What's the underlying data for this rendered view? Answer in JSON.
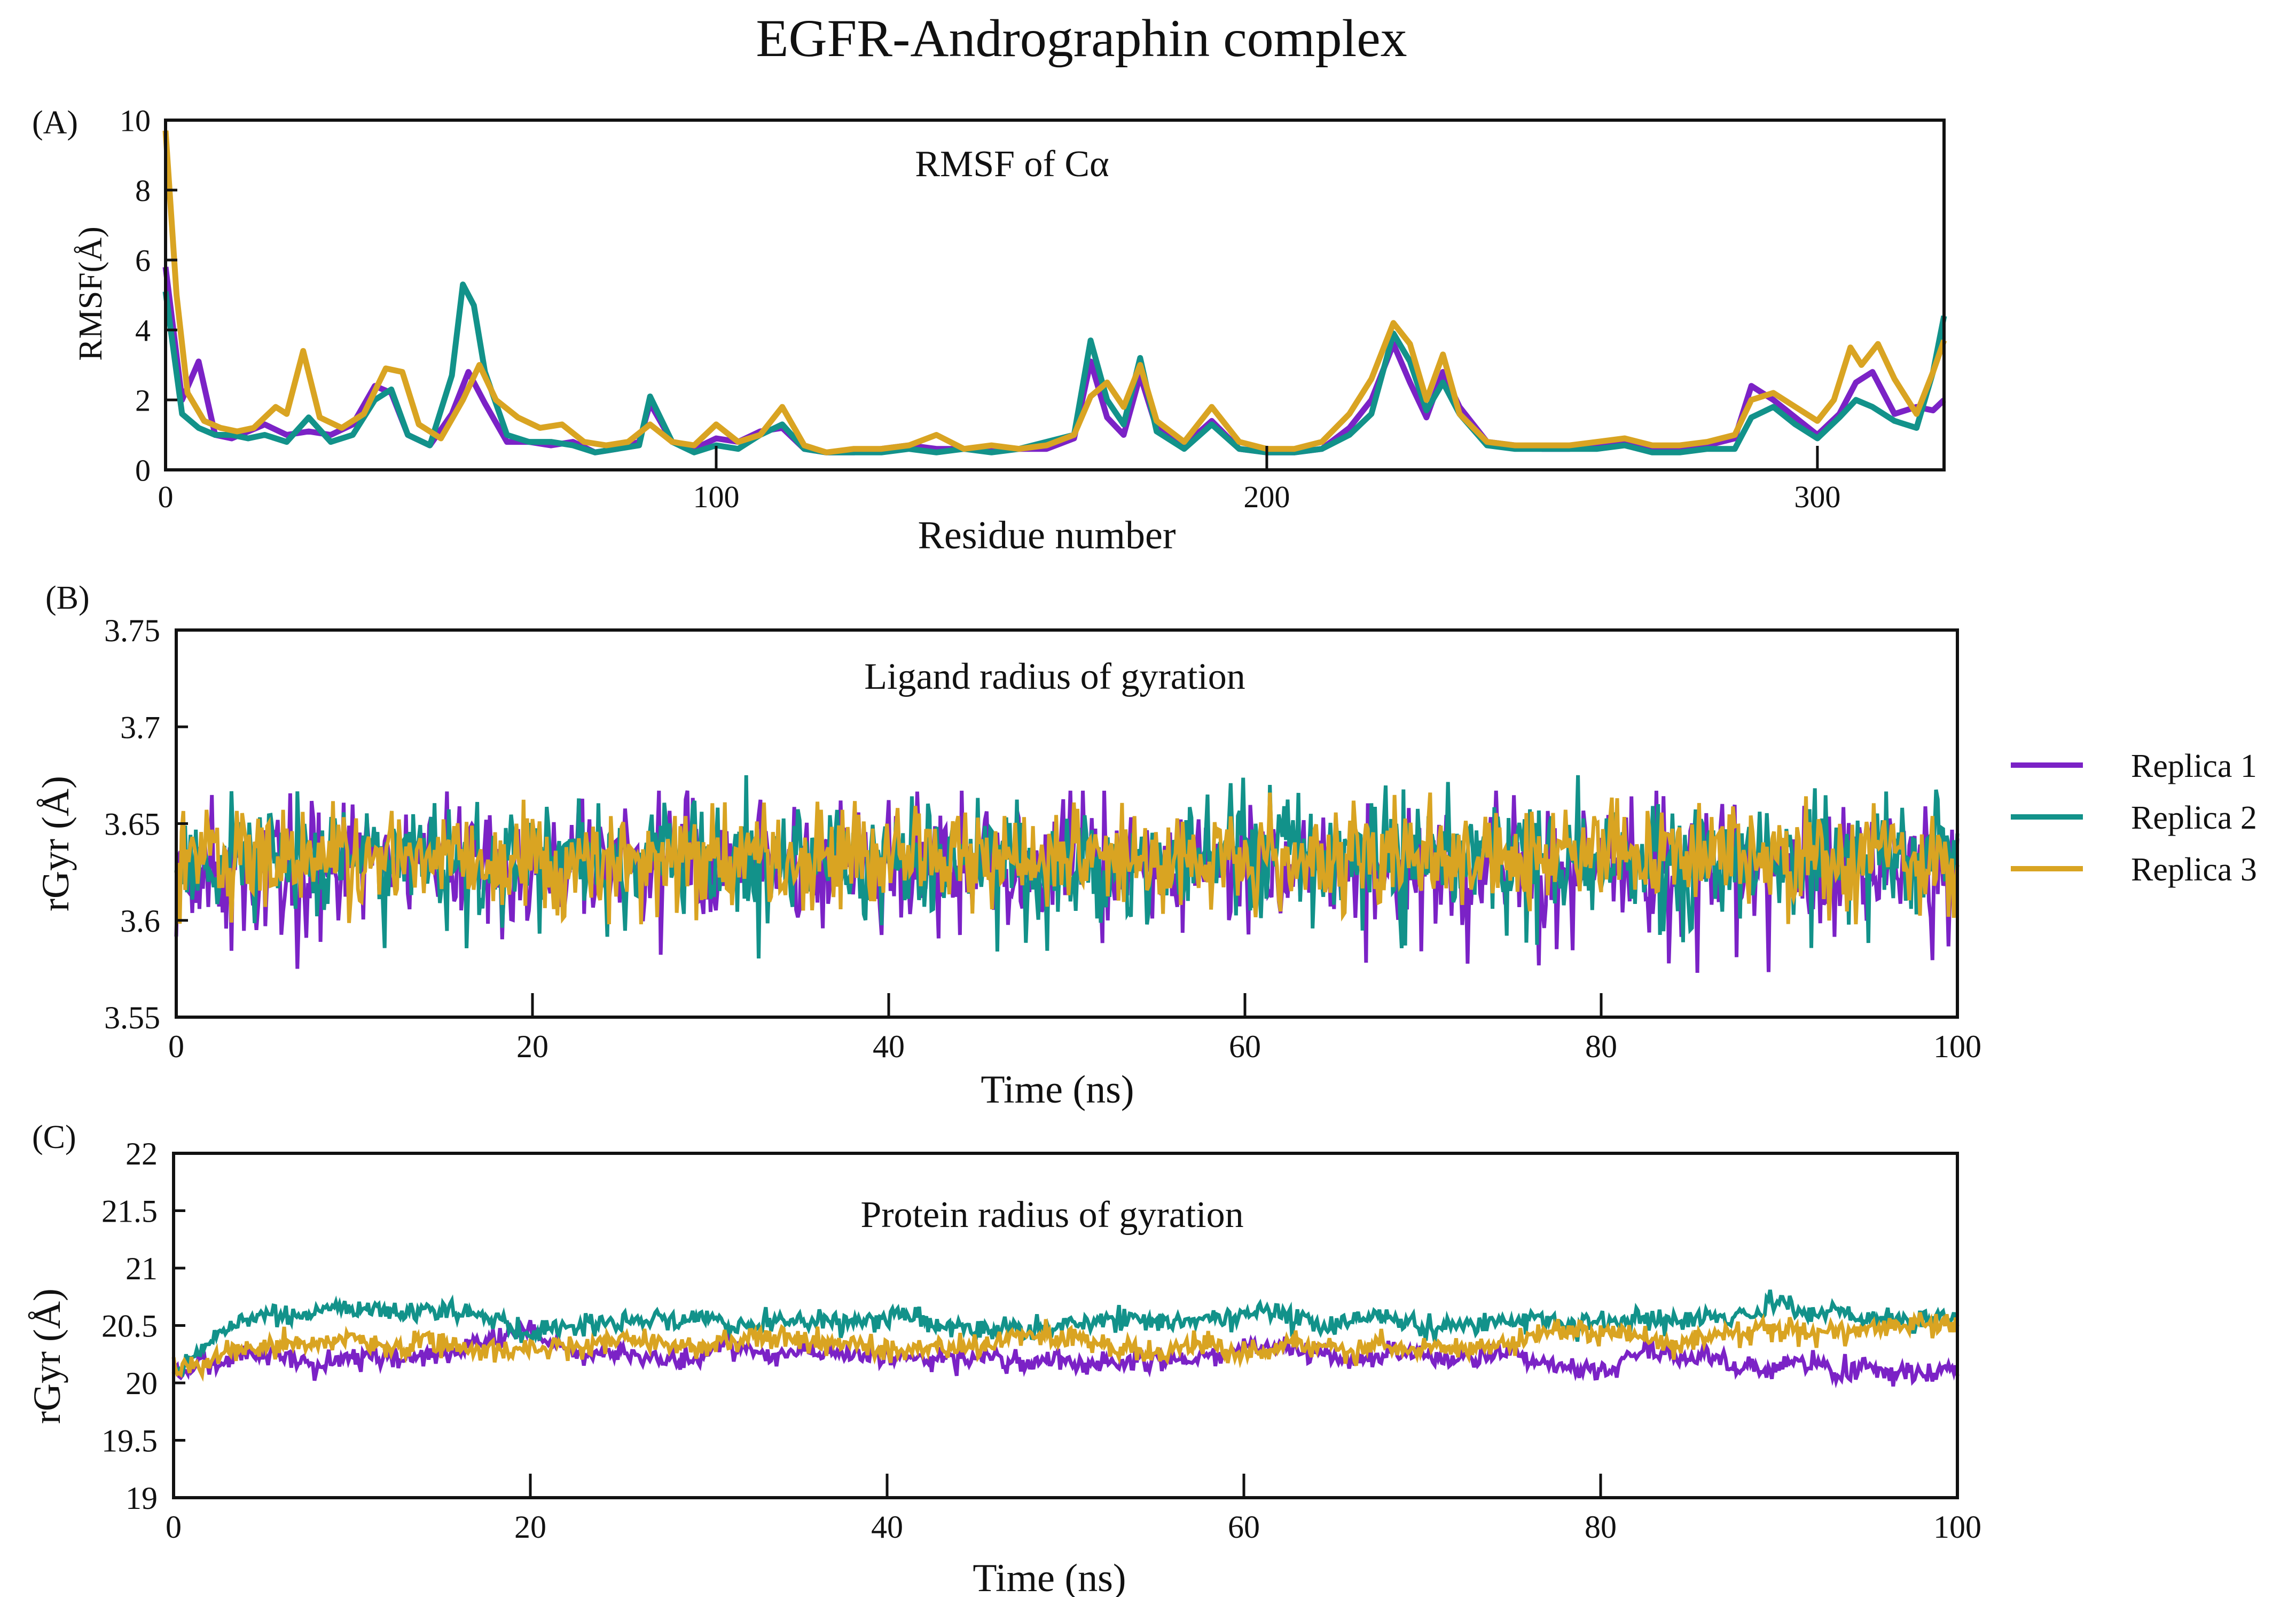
{
  "figure_title": "EGFR-Andrographin complex",
  "legend": [
    {
      "label": "Replica 1",
      "color": "#7B22C6"
    },
    {
      "label": "Replica 2",
      "color": "#12928A"
    },
    {
      "label": "Replica 3",
      "color": "#D9A422"
    }
  ],
  "chart_data": [
    {
      "panel": "(A)",
      "type": "line",
      "title": "RMSF of Cα",
      "xlabel": "Residue number",
      "ylabel": "RMSF(Å)",
      "xlim": [
        0,
        323
      ],
      "ylim": [
        0,
        10
      ],
      "xticks": [
        0,
        100,
        200,
        300
      ],
      "yticks": [
        0,
        2,
        4,
        6,
        8,
        10
      ],
      "series": [
        {
          "name": "Replica 1",
          "color": "#7B22C6",
          "x": [
            0,
            3,
            6,
            9,
            12,
            15,
            18,
            22,
            26,
            30,
            34,
            38,
            41,
            44,
            48,
            52,
            55,
            58,
            62,
            66,
            70,
            74,
            78,
            82,
            86,
            88,
            92,
            96,
            100,
            104,
            108,
            112,
            116,
            120,
            125,
            130,
            135,
            140,
            145,
            150,
            155,
            160,
            165,
            168,
            171,
            174,
            177,
            180,
            185,
            190,
            195,
            200,
            205,
            210,
            215,
            219,
            223,
            226,
            229,
            232,
            235,
            240,
            245,
            250,
            255,
            260,
            265,
            270,
            275,
            280,
            285,
            288,
            292,
            296,
            300,
            304,
            307,
            310,
            314,
            318,
            321,
            323
          ],
          "y": [
            5.8,
            2.0,
            3.1,
            1.0,
            0.9,
            1.1,
            1.3,
            1.0,
            1.1,
            1.0,
            1.3,
            2.4,
            2.2,
            1.0,
            0.7,
            1.6,
            2.8,
            1.9,
            0.8,
            0.8,
            0.7,
            0.8,
            0.5,
            0.6,
            0.8,
            1.9,
            0.8,
            0.6,
            0.9,
            0.8,
            1.1,
            1.2,
            0.6,
            0.5,
            0.5,
            0.6,
            0.7,
            0.6,
            0.6,
            0.6,
            0.6,
            0.6,
            0.9,
            3.1,
            1.5,
            1.0,
            2.7,
            1.2,
            0.7,
            1.4,
            0.6,
            0.5,
            0.5,
            0.6,
            1.2,
            2.0,
            3.6,
            2.5,
            1.5,
            2.8,
            1.8,
            0.8,
            0.7,
            0.6,
            0.6,
            0.7,
            0.8,
            0.6,
            0.6,
            0.7,
            0.9,
            2.4,
            2.0,
            1.5,
            1.0,
            1.6,
            2.5,
            2.8,
            1.6,
            1.8,
            1.7,
            2.0
          ]
        },
        {
          "name": "Replica 2",
          "color": "#12928A",
          "x": [
            0,
            3,
            6,
            9,
            12,
            15,
            18,
            22,
            26,
            30,
            34,
            38,
            41,
            44,
            48,
            52,
            54,
            56,
            58,
            62,
            66,
            70,
            74,
            78,
            82,
            86,
            88,
            92,
            96,
            100,
            104,
            108,
            112,
            116,
            120,
            125,
            130,
            135,
            140,
            145,
            150,
            155,
            160,
            165,
            168,
            171,
            174,
            177,
            180,
            185,
            190,
            195,
            200,
            205,
            210,
            215,
            219,
            223,
            226,
            229,
            232,
            235,
            240,
            245,
            250,
            255,
            260,
            265,
            270,
            275,
            280,
            285,
            288,
            292,
            296,
            300,
            304,
            307,
            310,
            314,
            318,
            321,
            323
          ],
          "y": [
            5.1,
            1.6,
            1.2,
            1.0,
            1.0,
            0.9,
            1.0,
            0.8,
            1.5,
            0.8,
            1.0,
            2.0,
            2.3,
            1.0,
            0.7,
            2.7,
            5.3,
            4.7,
            2.8,
            1.0,
            0.8,
            0.8,
            0.7,
            0.5,
            0.6,
            0.7,
            2.1,
            0.8,
            0.5,
            0.7,
            0.6,
            1.0,
            1.3,
            0.6,
            0.5,
            0.5,
            0.5,
            0.6,
            0.5,
            0.6,
            0.5,
            0.6,
            0.8,
            1.0,
            3.7,
            2.0,
            1.3,
            3.2,
            1.1,
            0.6,
            1.3,
            0.6,
            0.5,
            0.5,
            0.6,
            1.0,
            1.6,
            3.9,
            3.1,
            1.7,
            2.5,
            1.6,
            0.7,
            0.6,
            0.6,
            0.6,
            0.6,
            0.7,
            0.5,
            0.5,
            0.6,
            0.6,
            1.5,
            1.8,
            1.3,
            0.9,
            1.5,
            2.0,
            1.8,
            1.4,
            1.2,
            2.8,
            4.4
          ]
        },
        {
          "name": "Replica 3",
          "color": "#D9A422",
          "x": [
            0,
            2,
            4,
            7,
            10,
            13,
            16,
            20,
            22,
            25,
            28,
            32,
            36,
            40,
            43,
            46,
            50,
            54,
            57,
            60,
            64,
            68,
            72,
            76,
            80,
            84,
            88,
            92,
            96,
            100,
            104,
            108,
            112,
            116,
            120,
            125,
            130,
            135,
            140,
            145,
            150,
            155,
            160,
            165,
            168,
            171,
            174,
            177,
            180,
            185,
            190,
            195,
            200,
            205,
            210,
            215,
            219,
            223,
            226,
            229,
            232,
            235,
            240,
            245,
            250,
            255,
            260,
            265,
            270,
            275,
            280,
            285,
            288,
            292,
            296,
            300,
            303,
            306,
            308,
            311,
            314,
            318,
            321,
            323
          ],
          "y": [
            9.7,
            5.0,
            2.2,
            1.4,
            1.2,
            1.1,
            1.2,
            1.8,
            1.6,
            3.4,
            1.5,
            1.2,
            1.6,
            2.9,
            2.8,
            1.3,
            0.9,
            2.0,
            3.0,
            2.0,
            1.5,
            1.2,
            1.3,
            0.8,
            0.7,
            0.8,
            1.3,
            0.8,
            0.7,
            1.3,
            0.8,
            1.0,
            1.8,
            0.7,
            0.5,
            0.6,
            0.6,
            0.7,
            1.0,
            0.6,
            0.7,
            0.6,
            0.7,
            1.0,
            2.1,
            2.5,
            1.8,
            3.0,
            1.4,
            0.8,
            1.8,
            0.8,
            0.6,
            0.6,
            0.8,
            1.6,
            2.6,
            4.2,
            3.6,
            2.0,
            3.3,
            1.6,
            0.8,
            0.7,
            0.7,
            0.7,
            0.8,
            0.9,
            0.7,
            0.7,
            0.8,
            1.0,
            2.0,
            2.2,
            1.8,
            1.4,
            2.0,
            3.5,
            3.0,
            3.6,
            2.6,
            1.6,
            2.8,
            3.7
          ]
        }
      ]
    },
    {
      "panel": "(B)",
      "type": "line",
      "title": "Ligand radius of gyration",
      "xlabel": "Time (ns)",
      "ylabel": "rGyr (Å)",
      "xlim": [
        0,
        100
      ],
      "ylim": [
        3.55,
        3.75
      ],
      "xticks": [
        0,
        20,
        40,
        60,
        80,
        100
      ],
      "yticks": [
        3.55,
        3.6,
        3.65,
        3.7,
        3.75
      ],
      "series_summary": [
        {
          "name": "Replica 1",
          "color": "#7B22C6",
          "mean": 3.628,
          "fluctuation": 0.018,
          "min": 3.572,
          "max": 3.667,
          "drift": 0.0
        },
        {
          "name": "Replica 2",
          "color": "#12928A",
          "mean": 3.632,
          "fluctuation": 0.017,
          "min": 3.58,
          "max": 3.675,
          "drift": 0.0
        },
        {
          "name": "Replica 3",
          "color": "#D9A422",
          "mean": 3.632,
          "fluctuation": 0.014,
          "min": 3.598,
          "max": 3.666,
          "drift": 0.0
        }
      ]
    },
    {
      "panel": "(C)",
      "type": "line",
      "title": "Protein radius of gyration",
      "xlabel": "Time (ns)",
      "ylabel": "rGyr (Å)",
      "xlim": [
        0,
        100
      ],
      "ylim": [
        19,
        22
      ],
      "xticks": [
        0,
        20,
        40,
        60,
        80,
        100
      ],
      "yticks": [
        19,
        19.5,
        20,
        20.5,
        21,
        21.5,
        22
      ],
      "series_summary": [
        {
          "name": "Replica 1",
          "color": "#7B22C6",
          "mean": 20.25,
          "fluctuation": 0.07,
          "start": 20.05,
          "end": 20.1,
          "min": 19.95,
          "max": 20.55
        },
        {
          "name": "Replica 2",
          "color": "#12928A",
          "mean": 20.55,
          "fluctuation": 0.07,
          "start": 20.1,
          "end": 20.6,
          "min": 20.05,
          "max": 20.82
        },
        {
          "name": "Replica 3",
          "color": "#D9A422",
          "mean": 20.33,
          "fluctuation": 0.08,
          "start": 20.15,
          "end": 20.45,
          "min": 20.0,
          "max": 20.8
        }
      ]
    }
  ]
}
